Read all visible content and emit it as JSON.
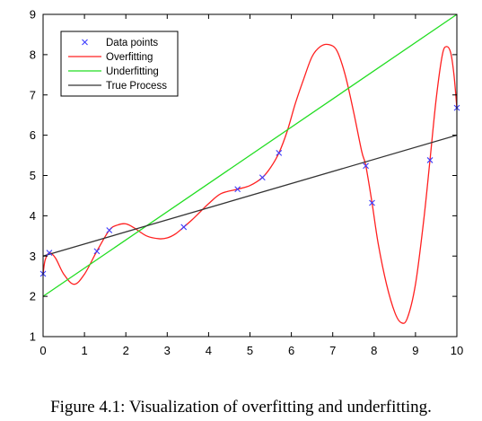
{
  "caption": "Figure 4.1: Visualization of overfitting and underfitting.",
  "chart_data": {
    "type": "line",
    "title": "",
    "xlabel": "",
    "ylabel": "",
    "xlim": [
      0,
      10
    ],
    "ylim": [
      1,
      9
    ],
    "xticks": [
      0,
      1,
      2,
      3,
      4,
      5,
      6,
      7,
      8,
      9,
      10
    ],
    "yticks": [
      1,
      2,
      3,
      4,
      5,
      6,
      7,
      8,
      9
    ],
    "grid": false,
    "legend_position": "top-left",
    "series": [
      {
        "name": "Data points",
        "style": "marker-x",
        "color": "#3b3bff",
        "x": [
          0.0,
          0.15,
          1.3,
          1.6,
          3.4,
          4.7,
          5.3,
          5.7,
          7.8,
          7.95,
          9.35,
          10.0
        ],
        "y": [
          2.56,
          3.08,
          3.12,
          3.64,
          3.72,
          4.66,
          4.95,
          5.56,
          5.24,
          4.32,
          5.38,
          6.68
        ]
      },
      {
        "name": "Overfitting",
        "style": "line",
        "color": "#ff2020",
        "x": [
          0.0,
          0.05,
          0.15,
          0.3,
          0.5,
          0.75,
          1.0,
          1.3,
          1.6,
          1.8,
          2.0,
          2.2,
          2.5,
          2.8,
          3.0,
          3.2,
          3.4,
          3.6,
          3.8,
          4.0,
          4.3,
          4.7,
          5.0,
          5.3,
          5.5,
          5.7,
          5.9,
          6.1,
          6.3,
          6.5,
          6.7,
          6.9,
          7.1,
          7.3,
          7.5,
          7.7,
          7.8,
          7.95,
          8.1,
          8.3,
          8.5,
          8.65,
          8.8,
          9.0,
          9.2,
          9.35,
          9.5,
          9.65,
          9.75,
          9.85,
          9.93,
          10.0
        ],
        "y": [
          2.56,
          2.9,
          3.08,
          2.95,
          2.55,
          2.3,
          2.55,
          3.12,
          3.64,
          3.77,
          3.8,
          3.7,
          3.5,
          3.43,
          3.45,
          3.55,
          3.72,
          3.9,
          4.1,
          4.3,
          4.55,
          4.66,
          4.75,
          4.95,
          5.2,
          5.56,
          6.1,
          6.8,
          7.4,
          7.95,
          8.2,
          8.25,
          8.1,
          7.5,
          6.6,
          5.6,
          5.24,
          4.32,
          3.3,
          2.3,
          1.6,
          1.35,
          1.45,
          2.3,
          3.9,
          5.38,
          6.9,
          8.0,
          8.2,
          8.05,
          7.5,
          6.68
        ]
      },
      {
        "name": "Underfitting",
        "style": "line",
        "color": "#22dd22",
        "x": [
          0,
          10
        ],
        "y": [
          2,
          9
        ]
      },
      {
        "name": "True Process",
        "style": "line",
        "color": "#333333",
        "x": [
          0,
          10
        ],
        "y": [
          3,
          6
        ]
      }
    ]
  }
}
